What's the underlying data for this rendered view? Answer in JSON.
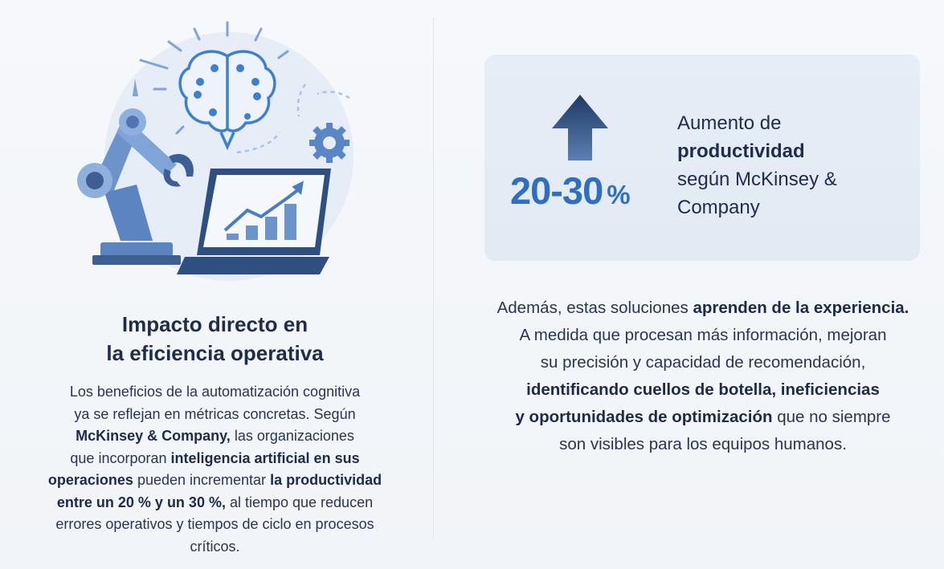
{
  "left": {
    "title_lines": [
      "Impacto directo en",
      "la eficiencia operativa"
    ],
    "paragraph": [
      [
        {
          "t": "Los beneficios de la automatización cognitiva",
          "b": false
        }
      ],
      [
        {
          "t": "ya se reflejan en métricas concretas. Según",
          "b": false
        }
      ],
      [
        {
          "t": "McKinsey & Company,",
          "b": true
        },
        {
          "t": " las organizaciones",
          "b": false
        }
      ],
      [
        {
          "t": "que incorporan ",
          "b": false
        },
        {
          "t": "inteligencia artificial en sus",
          "b": true
        }
      ],
      [
        {
          "t": "operaciones",
          "b": true
        },
        {
          "t": " pueden incrementar ",
          "b": false
        },
        {
          "t": "la productividad",
          "b": true
        }
      ],
      [
        {
          "t": "entre un 20 % y un 30 %,",
          "b": true
        },
        {
          "t": " al tiempo que reducen",
          "b": false
        }
      ],
      [
        {
          "t": "errores operativos y tiempos de ciclo en procesos",
          "b": false
        }
      ],
      [
        {
          "t": "críticos.",
          "b": false
        }
      ]
    ],
    "illustration_icons": [
      "robot-arm-icon",
      "brain-circuit-icon",
      "gear-icon",
      "laptop-chart-icon"
    ]
  },
  "card": {
    "arrow_icon": "arrow-up-icon",
    "stat_value": "20-30",
    "stat_unit": "%",
    "text_lines": [
      [
        {
          "t": "Aumento de",
          "b": false
        }
      ],
      [
        {
          "t": "productividad",
          "b": true
        }
      ],
      [
        {
          "t": "según McKinsey &",
          "b": false
        }
      ],
      [
        {
          "t": "Company",
          "b": false
        }
      ]
    ]
  },
  "right": {
    "paragraph": [
      [
        {
          "t": "Además, estas soluciones ",
          "b": false
        },
        {
          "t": "aprenden de la experiencia.",
          "b": true
        }
      ],
      [
        {
          "t": "A medida que procesan más información, mejoran",
          "b": false
        }
      ],
      [
        {
          "t": "su precisión y capacidad de recomendación,",
          "b": false
        }
      ],
      [
        {
          "t": "identificando cuellos de botella, ineficiencias",
          "b": true
        }
      ],
      [
        {
          "t": "y oportunidades de optimización",
          "b": true
        },
        {
          "t": " que no siempre",
          "b": false
        }
      ],
      [
        {
          "t": "son visibles para los equipos humanos.",
          "b": false
        }
      ]
    ]
  },
  "colors": {
    "accent": "#2f6ec0",
    "dark": "#1f2d4a",
    "card_bg": "#e4ebf5",
    "illustration": "#5b86c5"
  }
}
